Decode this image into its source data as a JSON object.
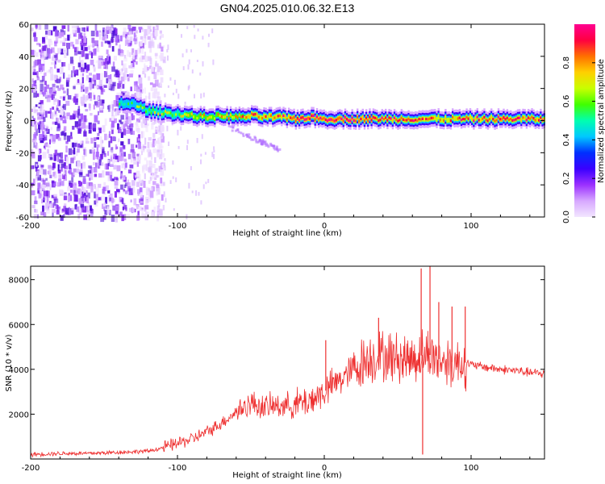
{
  "title": "GN04.2025.010.06.32.E13",
  "chart_data": [
    {
      "type": "heatmap",
      "xlabel": "Height of straight line (km)",
      "ylabel": "Frequency (Hz)",
      "xlim": [
        -200,
        150
      ],
      "ylim": [
        -60,
        60
      ],
      "xticks": [
        -200,
        -100,
        0,
        100
      ],
      "yticks": [
        -60,
        -40,
        -20,
        0,
        20,
        40,
        60
      ],
      "colorbar": {
        "label": "Normalized spectral amplitude",
        "range": [
          0,
          1
        ],
        "ticks": [
          0.0,
          0.2,
          0.4,
          0.6,
          0.8
        ],
        "tick_labels": [
          "0.0",
          "0.2",
          "0.4",
          "0.6",
          "0.8"
        ],
        "colors": [
          "#f2e6ff",
          "#d7a8ff",
          "#9b30ff",
          "#3a00ff",
          "#0030ff",
          "#00c8ff",
          "#00ffb0",
          "#40ff00",
          "#c8ff00",
          "#ffd000",
          "#ff7000",
          "#ff0040",
          "#ff0090"
        ]
      },
      "ridge": [
        {
          "x": -140,
          "f": 11,
          "a": 0.55
        },
        {
          "x": -130,
          "f": 10,
          "a": 0.5
        },
        {
          "x": -120,
          "f": 6,
          "a": 0.6
        },
        {
          "x": -110,
          "f": 5,
          "a": 0.6
        },
        {
          "x": -100,
          "f": 4,
          "a": 0.65
        },
        {
          "x": -90,
          "f": 3,
          "a": 0.7
        },
        {
          "x": -80,
          "f": 2,
          "a": 0.7
        },
        {
          "x": -70,
          "f": 3,
          "a": 0.75
        },
        {
          "x": -60,
          "f": 2,
          "a": 0.75
        },
        {
          "x": -50,
          "f": 3,
          "a": 0.8
        },
        {
          "x": -40,
          "f": 2,
          "a": 0.8
        },
        {
          "x": -30,
          "f": 2,
          "a": 0.85
        },
        {
          "x": -20,
          "f": 1,
          "a": 0.9
        },
        {
          "x": -10,
          "f": 2,
          "a": 0.95
        },
        {
          "x": 0,
          "f": 1,
          "a": 0.95
        },
        {
          "x": 10,
          "f": 1,
          "a": 0.95
        },
        {
          "x": 20,
          "f": 1,
          "a": 0.9
        },
        {
          "x": 30,
          "f": 1,
          "a": 0.9
        },
        {
          "x": 40,
          "f": 1,
          "a": 0.85
        },
        {
          "x": 50,
          "f": 1,
          "a": 0.85
        },
        {
          "x": 60,
          "f": 1,
          "a": 0.85
        },
        {
          "x": 70,
          "f": 1,
          "a": 0.8
        },
        {
          "x": 80,
          "f": 1,
          "a": 0.8
        },
        {
          "x": 90,
          "f": 1,
          "a": 0.8
        },
        {
          "x": 100,
          "f": 1,
          "a": 0.85
        },
        {
          "x": 110,
          "f": 1,
          "a": 0.85
        },
        {
          "x": 120,
          "f": 1,
          "a": 0.9
        },
        {
          "x": 130,
          "f": 1,
          "a": 0.85
        },
        {
          "x": 140,
          "f": 1,
          "a": 0.85
        },
        {
          "x": 150,
          "f": 1,
          "a": 0.85
        }
      ]
    },
    {
      "type": "line",
      "xlabel": "Height of straight line (km)",
      "ylabel": "SNR (10 * v/v)",
      "xlim": [
        -200,
        150
      ],
      "ylim": [
        0,
        8600
      ],
      "xticks": [
        -200,
        -100,
        0,
        100
      ],
      "yticks": [
        2000,
        4000,
        6000,
        8000
      ],
      "series": [
        {
          "color": "#ee3030",
          "x": [
            -200,
            -180,
            -160,
            -140,
            -120,
            -110,
            -100,
            -90,
            -80,
            -70,
            -60,
            -50,
            -40,
            -30,
            -20,
            -10,
            0,
            10,
            20,
            30,
            40,
            50,
            60,
            70,
            80,
            90,
            97,
            100,
            110,
            120,
            130,
            140,
            150
          ],
          "y": [
            200,
            250,
            250,
            300,
            350,
            500,
            700,
            900,
            1200,
            1600,
            2100,
            2500,
            2300,
            2400,
            2400,
            2600,
            3000,
            3500,
            4000,
            4500,
            4600,
            4500,
            4500,
            4700,
            4400,
            4300,
            4300,
            4200,
            4100,
            4000,
            3950,
            3850,
            3800
          ]
        }
      ],
      "spikes": [
        {
          "x": 1,
          "y": 5300
        },
        {
          "x": 37,
          "y": 6300
        },
        {
          "x": 66,
          "y": 8500
        },
        {
          "x": 72,
          "y": 8600
        },
        {
          "x": 78,
          "y": 7000
        },
        {
          "x": 87,
          "y": 6800
        },
        {
          "x": 96,
          "y": 6800
        },
        {
          "x": 67,
          "y": 200
        }
      ]
    }
  ]
}
